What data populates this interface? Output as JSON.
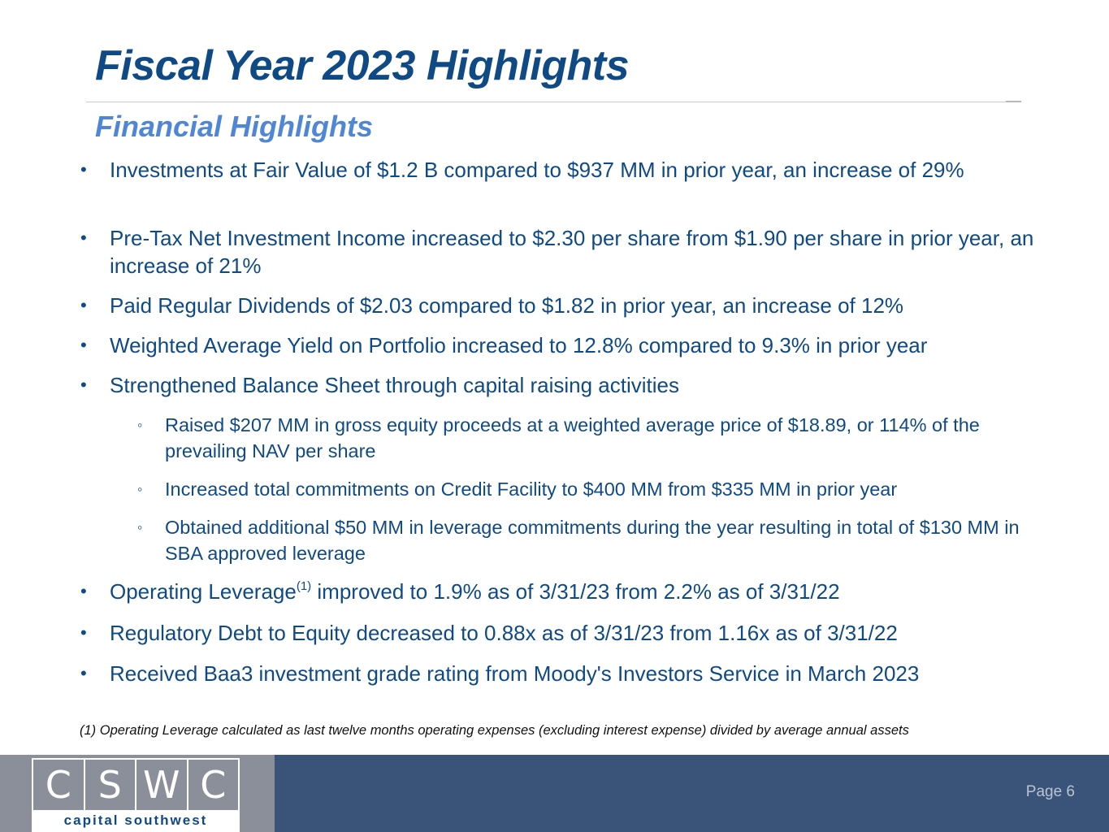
{
  "slide": {
    "title": "Fiscal Year 2023 Highlights",
    "subtitle": "Financial Highlights",
    "bullet_symbol": "•",
    "sub_bullet_symbol": "◦",
    "bullets": [
      "Investments at Fair Value of $1.2 B compared to $937 MM in prior year, an increase of 29%",
      "Pre-Tax Net Investment Income increased to $2.30 per share from $1.90 per share in prior year, an increase of 21%",
      "Paid Regular Dividends of $2.03 compared to $1.82 in prior year, an increase of 12%",
      "Weighted Average Yield on Portfolio increased to 12.8% compared to 9.3% in prior year",
      "Strengthened Balance Sheet through capital raising activities"
    ],
    "sub_bullets": [
      "Raised $207 MM in gross equity proceeds at a weighted average price of $18.89, or 114% of the prevailing NAV per share",
      "Increased total commitments on Credit Facility to $400 MM from $335 MM in prior year",
      "Obtained additional $50 MM in leverage commitments during the year resulting in total of $130 MM in SBA approved leverage"
    ],
    "leverage_bullet": {
      "before": "Operating Leverage",
      "sup": "(1)",
      "after": " improved to 1.9% as of 3/31/23 from 2.2% as of 3/31/22"
    },
    "bullets_after": [
      "Regulatory Debt to Equity decreased to 0.88x as of 3/31/23 from 1.16x as of 3/31/22",
      "Received Baa3 investment grade rating from Moody's Investors Service in March 2023"
    ],
    "footnote": "(1) Operating Leverage calculated as last twelve months operating expenses (excluding interest expense) divided by average annual assets"
  },
  "footer": {
    "logo_letters": [
      "C",
      "S",
      "W",
      "C"
    ],
    "logo_tagline": "capital southwest",
    "page_label": "Page 6"
  },
  "colors": {
    "title": "#0f4a84",
    "subtitle": "#4f87d6",
    "footer_band": "#3a5479",
    "logo_gray": "#8a8f99"
  }
}
